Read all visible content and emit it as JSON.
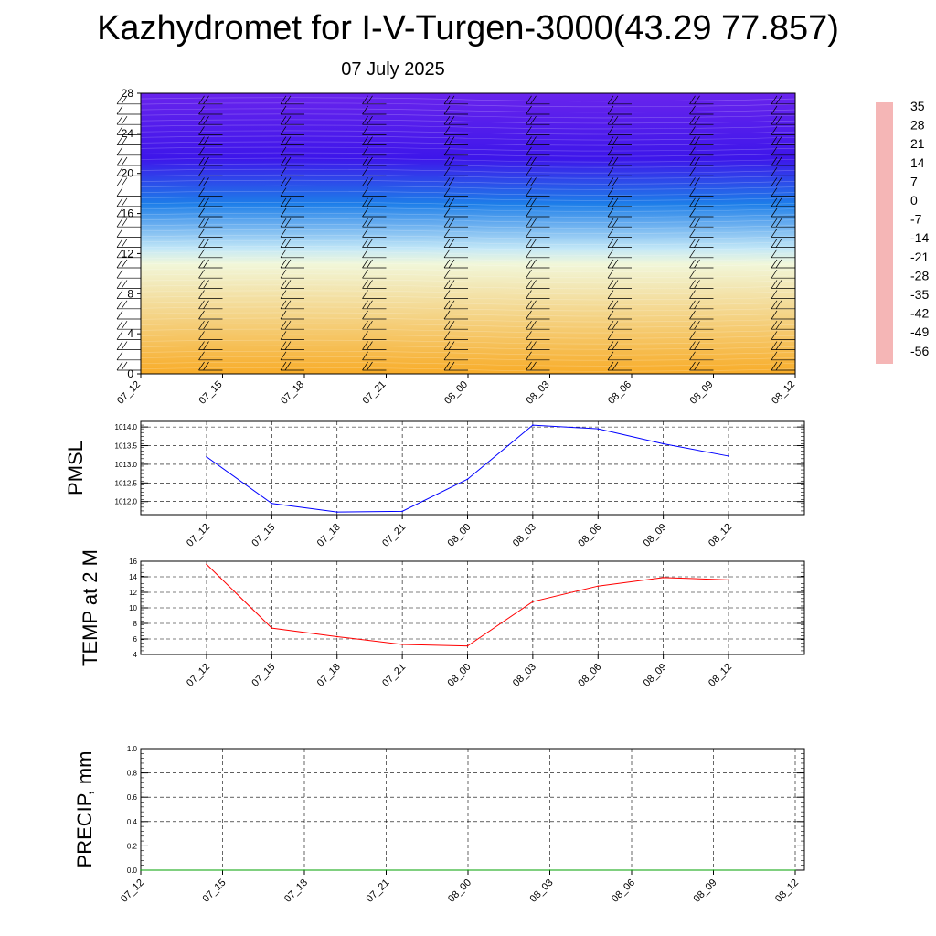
{
  "title": "Kazhydromet for I-V-Turgen-3000(43.29 77.857)",
  "subtitle": "07 July 2025",
  "colorbar_colors": [
    "#f5b6b6",
    "#e63022",
    "#f06a10",
    "#f7a21a",
    "#fcd560",
    "#fff8a8",
    "#e8f6fb",
    "#8fd2f0",
    "#2aa8ef",
    "#1a74e8",
    "#1530dd",
    "#2a10e8",
    "#8a2ef0"
  ],
  "chart_data": [
    {
      "type": "heatmap",
      "description_colors": "temperature shading with wind barbs",
      "categories": [
        "07_12",
        "07_15",
        "07_18",
        "07_21",
        "08_00",
        "08_03",
        "08_06",
        "08_09",
        "08_12"
      ],
      "yticks": [
        "0",
        "4",
        "8",
        "12",
        "16",
        "20",
        "24",
        "28"
      ],
      "ylim": [
        0,
        28
      ],
      "colorbar_labels": [
        "35",
        "28",
        "21",
        "14",
        "7",
        "0",
        "-7",
        "-14",
        "-21",
        "-28",
        "-35",
        "-42",
        "-49",
        "-56"
      ],
      "zlim": [
        -63,
        42
      ],
      "bands": [
        {
          "bottom": 0,
          "top": 11,
          "from": 14,
          "to": -7
        },
        {
          "bottom": 11,
          "top": 12.5,
          "from": -7,
          "to": -14
        },
        {
          "bottom": 12.5,
          "top": 17,
          "from": -14,
          "to": -35
        },
        {
          "bottom": 17,
          "top": 21.5,
          "from": -35,
          "to": -56
        },
        {
          "bottom": 21.5,
          "top": 28,
          "from": -56,
          "to": -60
        }
      ]
    },
    {
      "type": "line",
      "ylabel": "PMSL",
      "categories": [
        "07_12",
        "07_15",
        "07_18",
        "07_21",
        "08_00",
        "08_03",
        "08_06",
        "08_09",
        "08_12"
      ],
      "yticks": [
        "1012.0",
        "1012.5",
        "1013.0",
        "1013.5",
        "1014.0"
      ],
      "ylim": [
        1011.65,
        1014.15
      ],
      "series": [
        {
          "color": "#0000ff",
          "values": [
            1013.2,
            1011.95,
            1011.72,
            1011.74,
            1012.6,
            1014.05,
            1013.95,
            1013.55,
            1013.22
          ]
        }
      ]
    },
    {
      "type": "line",
      "ylabel": "TEMP at 2 M",
      "categories": [
        "07_12",
        "07_15",
        "07_18",
        "07_21",
        "08_00",
        "08_03",
        "08_06",
        "08_09",
        "08_12"
      ],
      "yticks": [
        "4",
        "6",
        "8",
        "10",
        "12",
        "14",
        "16"
      ],
      "ylim": [
        4,
        16
      ],
      "series": [
        {
          "color": "#ff0000",
          "values": [
            15.6,
            7.4,
            6.3,
            5.3,
            5.1,
            10.8,
            12.8,
            13.9,
            13.6
          ]
        }
      ]
    },
    {
      "type": "line",
      "ylabel": "PRECIP, mm",
      "categories": [
        "07_12",
        "07_15",
        "07_18",
        "07_21",
        "08_00",
        "08_03",
        "08_06",
        "08_09",
        "08_12"
      ],
      "yticks": [
        "0.0",
        "0.2",
        "0.4",
        "0.6",
        "0.8",
        "1.0"
      ],
      "ylim": [
        0,
        1
      ],
      "series": [
        {
          "color": "#00a000",
          "values": [
            0,
            0,
            0,
            0,
            0,
            0,
            0,
            0,
            0
          ]
        }
      ]
    }
  ]
}
